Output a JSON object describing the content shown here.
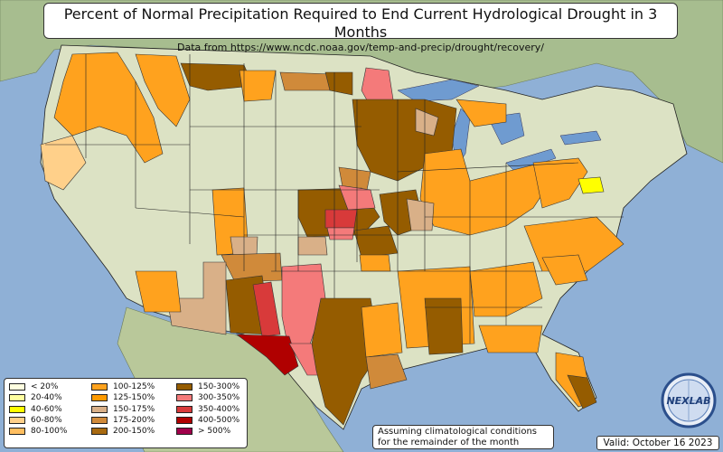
{
  "title": "Percent of Normal Precipitation Required to End Current Hydrological Drought in 3 Months",
  "subtitle": "Data from https://www.ncdc.noaa.gov/temp-and-precip/drought/recovery/",
  "legend": [
    {
      "label": "< 20%",
      "color": "#ffffe0"
    },
    {
      "label": "20-40%",
      "color": "#ffffa0"
    },
    {
      "label": "40-60%",
      "color": "#ffff00"
    },
    {
      "label": "60-80%",
      "color": "#ffd08a"
    },
    {
      "label": "80-100%",
      "color": "#ffbe60"
    },
    {
      "label": "100-125%",
      "color": "#ffa21e"
    },
    {
      "label": "125-150%",
      "color": "#ff9a00"
    },
    {
      "label": "150-175%",
      "color": "#d9b088"
    },
    {
      "label": "175-200%",
      "color": "#d08a3a"
    },
    {
      "label": "200-150%",
      "color": "#a86a10"
    },
    {
      "label": "150-300%",
      "color": "#955c00"
    },
    {
      "label": "300-350%",
      "color": "#f47a7a"
    },
    {
      "label": "350-400%",
      "color": "#d83a3a"
    },
    {
      "label": "400-500%",
      "color": "#b00000"
    },
    {
      "label": "> 500%",
      "color": "#a0004a"
    }
  ],
  "note": {
    "line1": "Assuming climatological conditions",
    "line2": "for the remainder of the month"
  },
  "valid": "Valid: October 16 2023",
  "logo_text": "NEXLAB",
  "colors": {
    "ocean": "#8fb0d6",
    "land_us": "#dde3c6",
    "land_other": "#a9c093",
    "lakes": "#6f9bd0"
  }
}
